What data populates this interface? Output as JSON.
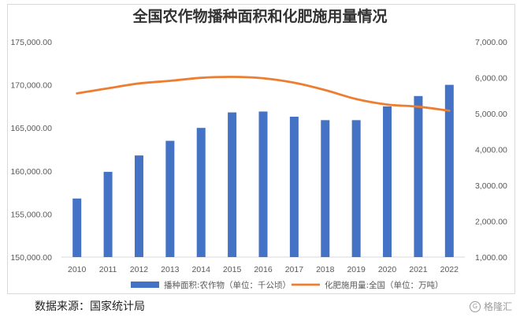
{
  "chart_data": {
    "type": "bar+line",
    "title": "全国农作物播种面积和化肥施用量情况",
    "categories": [
      "2010",
      "2011",
      "2012",
      "2013",
      "2014",
      "2015",
      "2016",
      "2017",
      "2018",
      "2019",
      "2020",
      "2021",
      "2022"
    ],
    "series": [
      {
        "name": "播种面积:农作物（单位：千公顷）",
        "type": "bar",
        "axis": "left",
        "color": "#4472C4",
        "values": [
          156800,
          159900,
          161800,
          163500,
          165000,
          166800,
          166900,
          166300,
          165900,
          165900,
          167500,
          168700,
          170000
        ]
      },
      {
        "name": "化肥施用量:全国（单位：万吨）",
        "type": "line",
        "axis": "right",
        "color": "#ED7D31",
        "values": [
          5562,
          5704,
          5839,
          5912,
          5996,
          6022,
          5984,
          5859,
          5653,
          5404,
          5251,
          5191,
          5079
        ]
      }
    ],
    "left_axis": {
      "min": 150000,
      "max": 175000,
      "step": 5000,
      "ticks": [
        "150,000.00",
        "155,000.00",
        "160,000.00",
        "165,000.00",
        "170,000.00",
        "175,000.00"
      ]
    },
    "right_axis": {
      "min": 1000,
      "max": 7000,
      "step": 1000,
      "ticks": [
        "1,000.00",
        "2,000.00",
        "3,000.00",
        "4,000.00",
        "5,000.00",
        "6,000.00",
        "7,000.00"
      ]
    },
    "grid": false,
    "legend_position": "bottom"
  },
  "source_text": "数据来源：国家统计局",
  "watermark_text": "格隆汇"
}
